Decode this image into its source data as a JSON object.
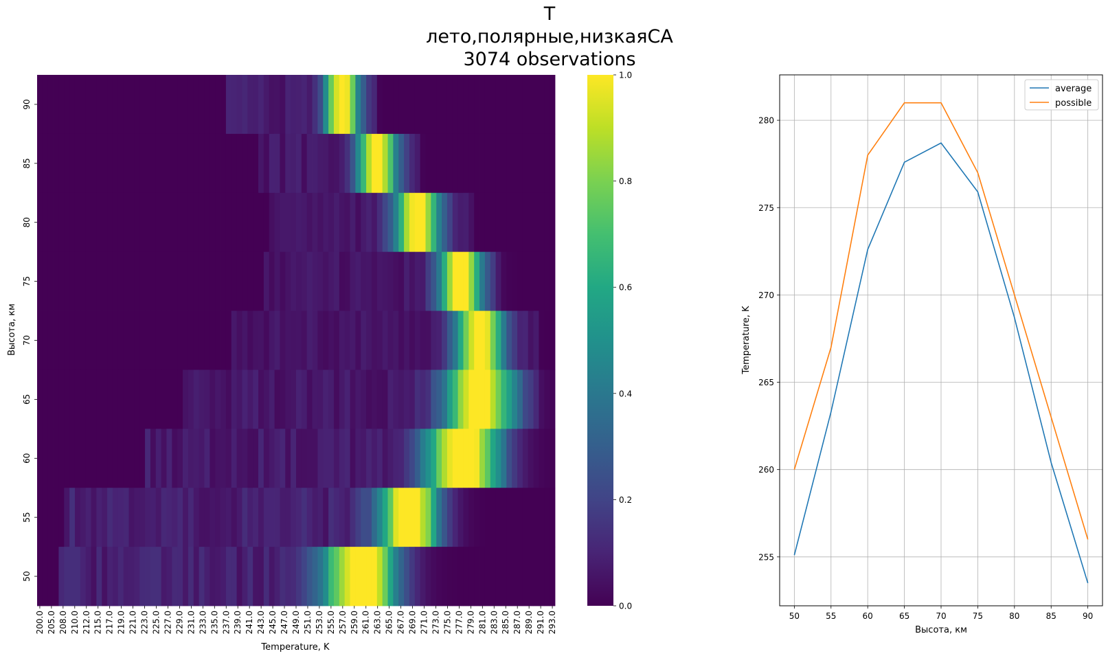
{
  "title": {
    "line1": "T",
    "line2": "лето,полярные,низкаяСА",
    "line3": "3074 observations"
  },
  "chart_data": [
    {
      "type": "heatmap",
      "xlabel": "Temperature, K",
      "ylabel": "Высота, км",
      "x_tick_labels": [
        "200.0",
        "205.0",
        "208.0",
        "210.0",
        "212.0",
        "215.0",
        "217.0",
        "219.0",
        "221.0",
        "223.0",
        "225.0",
        "227.0",
        "229.0",
        "231.0",
        "233.0",
        "235.0",
        "237.0",
        "239.0",
        "241.0",
        "243.0",
        "245.0",
        "247.0",
        "249.0",
        "251.0",
        "253.0",
        "255.0",
        "257.0",
        "259.0",
        "261.0",
        "263.0",
        "265.0",
        "267.0",
        "269.0",
        "271.0",
        "273.0",
        "275.0",
        "277.0",
        "279.0",
        "281.0",
        "283.0",
        "285.0",
        "287.0",
        "289.0",
        "291.0",
        "293.0"
      ],
      "rows": [
        "90",
        "85",
        "80",
        "75",
        "70",
        "65",
        "60",
        "55",
        "50"
      ],
      "profiles": [
        {
          "altitude": 90,
          "peak_k": 256,
          "width": 2.2,
          "floor": 0.08,
          "floor_lo": 235,
          "floor_hi": 262
        },
        {
          "altitude": 85,
          "peak_k": 262.5,
          "width": 2.6,
          "floor": 0.07,
          "floor_lo": 241,
          "floor_hi": 270
        },
        {
          "altitude": 80,
          "peak_k": 270,
          "width": 3.0,
          "floor": 0.06,
          "floor_lo": 243,
          "floor_hi": 280
        },
        {
          "altitude": 75,
          "peak_k": 278,
          "width": 2.8,
          "floor": 0.06,
          "floor_lo": 242,
          "floor_hi": 285
        },
        {
          "altitude": 70,
          "peak_k": 281.5,
          "width": 3.2,
          "floor": 0.06,
          "floor_lo": 236,
          "floor_hi": 292
        },
        {
          "altitude": 65,
          "peak_k": 281.5,
          "width": 4.5,
          "floor": 0.07,
          "floor_lo": 227,
          "floor_hi": 292
        },
        {
          "altitude": 60,
          "peak_k": 278.5,
          "width": 5.0,
          "floor": 0.08,
          "floor_lo": 220,
          "floor_hi": 286
        },
        {
          "altitude": 55,
          "peak_k": 268.5,
          "width": 4.0,
          "floor": 0.1,
          "floor_lo": 205,
          "floor_hi": 273
        },
        {
          "altitude": 50,
          "peak_k": 259.5,
          "width": 5.0,
          "floor": 0.1,
          "floor_lo": 204,
          "floor_hi": 265
        }
      ],
      "colorbar": {
        "min": 0.0,
        "max": 1.0,
        "ticks": [
          "0.0",
          "0.2",
          "0.4",
          "0.6",
          "0.8",
          "1.0"
        ],
        "colormap": "viridis"
      }
    },
    {
      "type": "line",
      "x": [
        50,
        55,
        60,
        65,
        70,
        75,
        80,
        85,
        90
      ],
      "x_tick_labels": [
        "50",
        "55",
        "60",
        "65",
        "70",
        "75",
        "80",
        "85",
        "90"
      ],
      "xlabel": "Высота, км",
      "ylabel": "Temperature, K",
      "ylim": [
        252.2,
        282.6
      ],
      "y_ticks": [
        255,
        260,
        265,
        270,
        275,
        280
      ],
      "grid": true,
      "legend_position": "top-right",
      "series": [
        {
          "name": "average",
          "color": "#1f77b4",
          "values": [
            255.1,
            263.3,
            272.6,
            277.6,
            278.7,
            275.9,
            268.7,
            260.4,
            253.5
          ]
        },
        {
          "name": "possible",
          "color": "#ff7f0e",
          "values": [
            260,
            267,
            278,
            281,
            281,
            277,
            270,
            263,
            256
          ]
        }
      ]
    }
  ]
}
